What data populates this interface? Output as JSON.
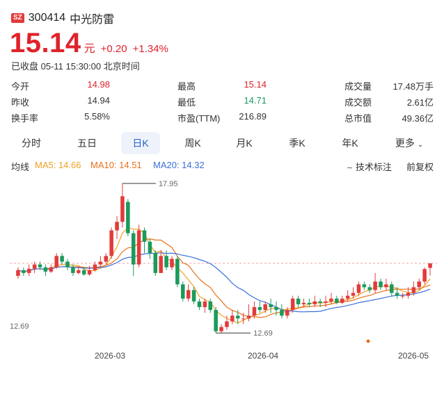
{
  "header": {
    "badge": "SZ",
    "code": "300414",
    "name": "中光防雷"
  },
  "quote": {
    "price": "15.14",
    "unit": "元",
    "change": "+0.20",
    "change_pct": "+1.34%",
    "status": "已收盘 05-11 15:30:00 北京时间"
  },
  "stats": {
    "open_label": "今开",
    "open": "14.98",
    "prev_label": "昨收",
    "prev": "14.94",
    "turnover_label": "换手率",
    "turnover": "5.58%",
    "high_label": "最高",
    "high": "15.14",
    "low_label": "最低",
    "low": "14.71",
    "pe_label": "市盈(TTM)",
    "pe": "216.89",
    "vol_label": "成交量",
    "vol": "17.48万手",
    "amt_label": "成交额",
    "amt": "2.61亿",
    "mcap_label": "总市值",
    "mcap": "49.36亿"
  },
  "tabs": [
    "分时",
    "五日",
    "日K",
    "周K",
    "月K",
    "季K",
    "年K",
    "更多"
  ],
  "active_tab": "日K",
  "ma": {
    "label": "均线",
    "ma5": "MA5: 14.66",
    "ma10": "MA10: 14.51",
    "ma20": "MA20: 14.32",
    "ma5_color": "#f0a020",
    "ma10_color": "#e8701a",
    "ma20_color": "#3a6fd8"
  },
  "tools": {
    "indicator": "技术标注",
    "adjust": "前复权"
  },
  "chart_data": {
    "type": "candlestick",
    "high_mark": "17.95",
    "low_mark": "12.69",
    "y_label_low": "12.69",
    "x_labels": [
      "2026-03",
      "2026-04",
      "2026-05"
    ],
    "up_color": "#e23b3b",
    "down_color": "#1a9a5b",
    "ref_price": 15.14,
    "candles": [
      [
        14.7,
        14.9,
        14.6,
        15.0
      ],
      [
        14.9,
        14.8,
        14.7,
        15.0
      ],
      [
        14.8,
        14.95,
        14.7,
        15.1
      ],
      [
        14.95,
        15.1,
        14.8,
        15.2
      ],
      [
        15.1,
        15.0,
        14.9,
        15.2
      ],
      [
        15.0,
        14.85,
        14.7,
        15.1
      ],
      [
        14.85,
        15.0,
        14.8,
        15.1
      ],
      [
        15.0,
        15.4,
        14.95,
        15.5
      ],
      [
        15.4,
        15.2,
        15.1,
        15.5
      ],
      [
        15.2,
        15.0,
        14.9,
        15.3
      ],
      [
        15.0,
        14.8,
        14.7,
        15.1
      ],
      [
        14.8,
        14.9,
        14.75,
        15.0
      ],
      [
        14.9,
        14.75,
        14.7,
        15.0
      ],
      [
        14.75,
        14.9,
        14.7,
        15.05
      ],
      [
        14.9,
        15.1,
        14.85,
        15.2
      ],
      [
        15.1,
        15.2,
        15.0,
        15.4
      ],
      [
        15.2,
        15.4,
        15.1,
        15.5
      ],
      [
        15.4,
        16.3,
        15.3,
        16.4
      ],
      [
        16.3,
        16.6,
        16.0,
        16.8
      ],
      [
        16.6,
        17.5,
        16.4,
        17.95
      ],
      [
        17.3,
        16.2,
        16.1,
        17.4
      ],
      [
        16.2,
        15.1,
        14.7,
        16.3
      ],
      [
        15.1,
        16.3,
        15.0,
        16.5
      ],
      [
        16.3,
        15.9,
        15.5,
        16.4
      ],
      [
        15.9,
        15.5,
        15.3,
        16.0
      ],
      [
        15.5,
        14.8,
        14.7,
        15.6
      ],
      [
        14.8,
        15.4,
        14.8,
        15.6
      ],
      [
        15.4,
        15.0,
        14.9,
        15.6
      ],
      [
        15.0,
        15.3,
        14.9,
        15.4
      ],
      [
        15.3,
        14.4,
        14.3,
        15.4
      ],
      [
        14.4,
        13.9,
        13.8,
        14.5
      ],
      [
        13.9,
        14.2,
        13.8,
        14.4
      ],
      [
        14.2,
        13.8,
        13.7,
        14.3
      ],
      [
        13.8,
        13.6,
        13.5,
        13.9
      ],
      [
        13.6,
        13.8,
        13.4,
        13.9
      ],
      [
        13.8,
        13.5,
        13.4,
        13.9
      ],
      [
        13.5,
        12.75,
        12.69,
        13.6
      ],
      [
        12.75,
        12.9,
        12.69,
        13.0
      ],
      [
        12.9,
        13.1,
        12.8,
        13.3
      ],
      [
        13.1,
        13.3,
        13.0,
        13.5
      ],
      [
        13.3,
        13.2,
        13.0,
        13.5
      ],
      [
        13.2,
        13.2,
        13.0,
        13.4
      ],
      [
        13.2,
        13.3,
        13.1,
        13.7
      ],
      [
        13.3,
        13.6,
        13.2,
        13.8
      ],
      [
        13.6,
        13.5,
        13.4,
        13.8
      ],
      [
        13.5,
        13.7,
        13.4,
        13.8
      ],
      [
        13.7,
        13.6,
        13.4,
        13.9
      ],
      [
        13.6,
        13.5,
        13.3,
        13.8
      ],
      [
        13.5,
        13.3,
        13.2,
        13.7
      ],
      [
        13.3,
        13.5,
        13.2,
        13.6
      ],
      [
        13.5,
        13.9,
        13.4,
        14.0
      ],
      [
        13.9,
        13.7,
        13.6,
        14.0
      ],
      [
        13.7,
        13.75,
        13.6,
        13.9
      ],
      [
        13.75,
        13.7,
        13.6,
        13.9
      ],
      [
        13.7,
        13.8,
        13.6,
        14.0
      ],
      [
        13.8,
        13.75,
        13.6,
        13.9
      ],
      [
        13.75,
        13.8,
        13.6,
        14.0
      ],
      [
        13.8,
        13.9,
        13.7,
        14.1
      ],
      [
        13.9,
        13.75,
        13.7,
        14.0
      ],
      [
        13.75,
        13.9,
        13.7,
        14.0
      ],
      [
        13.9,
        14.0,
        13.8,
        14.2
      ],
      [
        14.0,
        14.1,
        13.9,
        14.3
      ],
      [
        14.1,
        14.4,
        14.0,
        14.5
      ],
      [
        14.4,
        14.3,
        14.2,
        14.5
      ],
      [
        14.3,
        14.2,
        14.1,
        14.4
      ],
      [
        14.2,
        14.5,
        14.1,
        14.8
      ],
      [
        14.5,
        14.3,
        14.2,
        14.6
      ],
      [
        14.3,
        14.4,
        14.2,
        14.6
      ],
      [
        14.4,
        14.1,
        14.0,
        14.5
      ],
      [
        14.1,
        14.0,
        13.9,
        14.3
      ],
      [
        14.0,
        14.0,
        13.9,
        14.1
      ],
      [
        14.0,
        14.1,
        13.9,
        14.3
      ],
      [
        14.1,
        14.3,
        14.0,
        14.5
      ],
      [
        14.3,
        14.5,
        14.2,
        14.6
      ],
      [
        14.5,
        14.94,
        14.4,
        15.0
      ],
      [
        14.98,
        15.14,
        14.71,
        15.14
      ]
    ]
  }
}
